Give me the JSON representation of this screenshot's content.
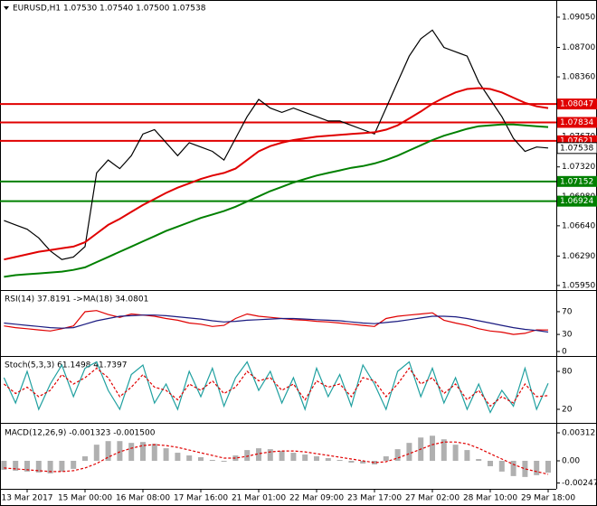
{
  "chart_data": [
    {
      "type": "line",
      "title": "EURUSD,H1  1.07530 1.07540 1.07500 1.07538",
      "categories": [
        null,
        null,
        "13 Mar 2017",
        null,
        null,
        null,
        null,
        "15 Mar 00:00",
        null,
        null,
        null,
        null,
        "16 Mar 08:00",
        null,
        null,
        null,
        null,
        "17 Mar 16:00",
        null,
        null,
        null,
        null,
        "21 Mar 01:00",
        null,
        null,
        null,
        null,
        "22 Mar 09:00",
        null,
        null,
        null,
        null,
        "23 Mar 17:00",
        null,
        null,
        null,
        null,
        "27 Mar 02:00",
        null,
        null,
        null,
        null,
        "28 Mar 10:00",
        null,
        null,
        null,
        null,
        "29 Mar 18:00"
      ],
      "series": [
        {
          "color": "#000000",
          "values": [
            1.067,
            1.0665,
            1.066,
            1.065,
            1.0635,
            1.0625,
            1.0628,
            1.064,
            1.0725,
            1.074,
            1.073,
            1.0745,
            1.077,
            1.0775,
            1.076,
            1.0745,
            1.076,
            1.0755,
            1.075,
            1.074,
            1.0765,
            1.079,
            1.081,
            1.08,
            1.0795,
            1.08,
            1.0795,
            1.079,
            1.0785,
            1.0785,
            1.078,
            1.0775,
            1.077,
            1.08,
            1.083,
            1.086,
            1.088,
            1.089,
            1.087,
            1.0865,
            1.086,
            1.083,
            1.081,
            1.079,
            1.0765,
            1.075,
            1.0755,
            1.07538
          ]
        },
        {
          "color": "#e00000",
          "values": [
            1.0625,
            1.0628,
            1.0631,
            1.0634,
            1.0636,
            1.0638,
            1.064,
            1.0645,
            1.0655,
            1.0665,
            1.0672,
            1.068,
            1.0688,
            1.0695,
            1.0702,
            1.0708,
            1.0713,
            1.0718,
            1.0722,
            1.0725,
            1.073,
            1.074,
            1.075,
            1.0756,
            1.076,
            1.0763,
            1.0765,
            1.0767,
            1.0768,
            1.0769,
            1.077,
            1.0771,
            1.0772,
            1.0775,
            1.078,
            1.0788,
            1.0796,
            1.0805,
            1.0812,
            1.0818,
            1.0822,
            1.0823,
            1.0822,
            1.0818,
            1.0812,
            1.0806,
            1.0802,
            1.08
          ]
        },
        {
          "color": "#008000",
          "values": [
            1.0605,
            1.0607,
            1.0608,
            1.0609,
            1.061,
            1.0611,
            1.0613,
            1.0616,
            1.0622,
            1.0628,
            1.0634,
            1.064,
            1.0646,
            1.0652,
            1.0658,
            1.0663,
            1.0668,
            1.0673,
            1.0677,
            1.0681,
            1.0686,
            1.0692,
            1.0698,
            1.0704,
            1.0709,
            1.0714,
            1.0718,
            1.0722,
            1.0725,
            1.0728,
            1.0731,
            1.0733,
            1.0736,
            1.074,
            1.0745,
            1.0751,
            1.0757,
            1.0763,
            1.0768,
            1.0772,
            1.0776,
            1.0779,
            1.078,
            1.0781,
            1.0781,
            1.078,
            1.0779,
            1.0778
          ]
        }
      ],
      "levels": [
        {
          "value": 1.08047,
          "color": "#e00000"
        },
        {
          "value": 1.07834,
          "color": "#e00000"
        },
        {
          "value": 1.07621,
          "color": "#e00000"
        },
        {
          "value": 1.07152,
          "color": "#008000"
        },
        {
          "value": 1.06924,
          "color": "#008000"
        }
      ],
      "ylim": [
        1.05908,
        1.09248
      ],
      "yticks": [
        {
          "value": 1.0905,
          "label": "1.09050"
        },
        {
          "value": 1.087,
          "label": "1.08700"
        },
        {
          "value": 1.0836,
          "label": "1.08360"
        },
        {
          "value": 1.0802,
          "label": "1.08020"
        },
        {
          "value": 1.0767,
          "label": "1.07670"
        },
        {
          "value": 1.0732,
          "label": "1.07320"
        },
        {
          "value": 1.0698,
          "label": "1.06980"
        },
        {
          "value": 1.0664,
          "label": "1.06640"
        },
        {
          "value": 1.0629,
          "label": "1.06290"
        },
        {
          "value": 1.0595,
          "label": "1.05950"
        }
      ]
    },
    {
      "type": "line",
      "title": "RSI(14) 37.8191 ->MA(18) 34.0801",
      "series": [
        {
          "color": "#e00000",
          "values": [
            45,
            42,
            40,
            38,
            36,
            40,
            45,
            70,
            72,
            65,
            60,
            66,
            64,
            62,
            58,
            55,
            50,
            48,
            44,
            46,
            58,
            66,
            62,
            60,
            58,
            56,
            55,
            53,
            52,
            50,
            48,
            46,
            44,
            58,
            62,
            64,
            66,
            68,
            55,
            50,
            46,
            40,
            36,
            34,
            30,
            32,
            38,
            37.8191
          ]
        },
        {
          "color": "#1a1a80",
          "values": [
            50,
            48,
            46,
            44,
            42,
            41,
            42,
            48,
            54,
            58,
            62,
            63,
            64,
            64,
            63,
            61,
            59,
            57,
            54,
            52,
            53,
            55,
            56,
            57,
            58,
            58,
            57,
            56,
            55,
            54,
            52,
            50,
            49,
            51,
            53,
            56,
            59,
            62,
            62,
            61,
            58,
            54,
            50,
            46,
            42,
            39,
            37,
            34.0801
          ]
        }
      ],
      "ylim": [
        -4.8,
        106.5
      ],
      "yticks": [
        70,
        30,
        0
      ]
    },
    {
      "type": "line",
      "title": "Stoch(5,3,3) 61.1498 41.7397",
      "series": [
        {
          "color": "#20a0a0",
          "values": [
            70,
            30,
            80,
            20,
            60,
            90,
            40,
            85,
            95,
            50,
            20,
            75,
            90,
            30,
            60,
            20,
            80,
            40,
            85,
            25,
            70,
            95,
            50,
            80,
            30,
            70,
            20,
            85,
            40,
            75,
            25,
            90,
            60,
            20,
            80,
            95,
            40,
            85,
            30,
            70,
            20,
            60,
            15,
            50,
            25,
            85,
            20,
            61.1498
          ]
        },
        {
          "color": "#e00000",
          "dashed": true,
          "values": [
            60,
            45,
            55,
            40,
            50,
            75,
            60,
            70,
            85,
            70,
            40,
            55,
            75,
            55,
            50,
            35,
            60,
            50,
            65,
            45,
            55,
            80,
            65,
            70,
            50,
            60,
            35,
            65,
            55,
            60,
            40,
            70,
            65,
            40,
            60,
            85,
            60,
            70,
            45,
            60,
            35,
            50,
            25,
            40,
            30,
            60,
            40,
            41.7397
          ]
        }
      ],
      "ylim": [
        0,
        102.9
      ],
      "yticks": [
        80,
        20
      ]
    },
    {
      "type": "bar",
      "title": "MACD(12,26,9) -0.001323 -0.001500",
      "color": "#b0b0b0",
      "values": [
        -0.001,
        -0.0011,
        -0.0012,
        -0.0013,
        -0.0014,
        -0.0012,
        -0.0009,
        0.0005,
        0.0018,
        0.0022,
        0.0022,
        0.002,
        0.0021,
        0.0019,
        0.0014,
        0.0009,
        0.0006,
        0.0004,
        0.0001,
        -0.0001,
        0.0006,
        0.0012,
        0.0014,
        0.0013,
        0.0011,
        0.0009,
        0.0007,
        0.0005,
        0.0003,
        0.0001,
        -0.0002,
        -0.0003,
        -0.0004,
        0.0005,
        0.0013,
        0.002,
        0.0026,
        0.0028,
        0.0024,
        0.0018,
        0.0012,
        0.0002,
        -0.0006,
        -0.0012,
        -0.0017,
        -0.0018,
        -0.0016,
        -0.001323
      ],
      "series": [
        {
          "color": "#e00000",
          "dashed": true,
          "values": [
            -0.0008,
            -0.0009,
            -0.001,
            -0.0011,
            -0.0012,
            -0.0012,
            -0.0011,
            -0.0008,
            -0.0003,
            0.0004,
            0.001,
            0.0014,
            0.0017,
            0.0018,
            0.0017,
            0.0015,
            0.0012,
            0.0009,
            0.0006,
            0.0003,
            0.0003,
            0.0005,
            0.0008,
            0.001,
            0.0011,
            0.0011,
            0.001,
            0.0008,
            0.0006,
            0.0004,
            0.0002,
            0,
            -0.0002,
            -0.0001,
            0.0003,
            0.0008,
            0.0013,
            0.0018,
            0.0021,
            0.0021,
            0.0019,
            0.0014,
            0.0008,
            0.0002,
            -0.0004,
            -0.0009,
            -0.0012,
            -0.0015
          ]
        }
      ],
      "ylim": [
        -0.003125,
        0.004032
      ],
      "yticks": [
        0.003125,
        {
          "value": 0,
          "label": "0.00"
        },
        -0.002474
      ]
    }
  ]
}
